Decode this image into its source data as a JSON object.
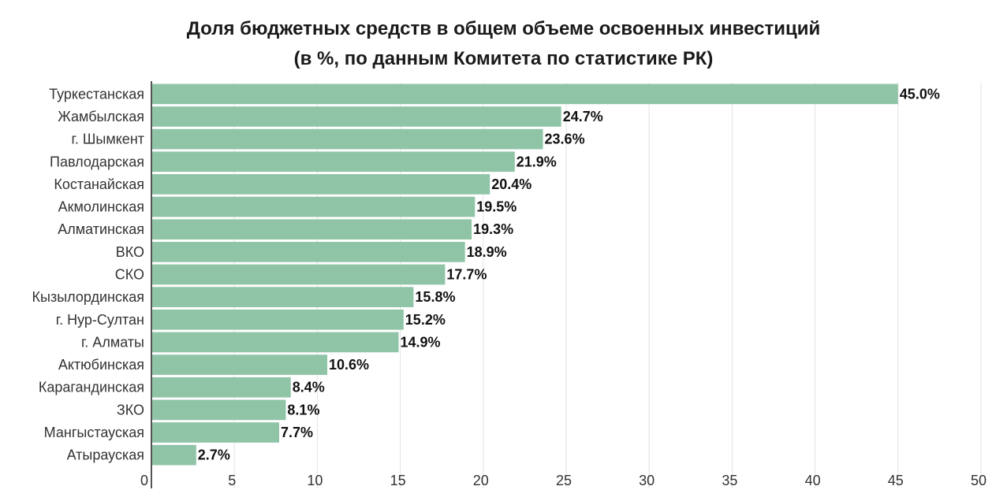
{
  "chart_data": {
    "type": "bar",
    "orientation": "horizontal",
    "title": "Доля бюджетных средств в общем объеме освоенных инвестиций",
    "subtitle": "(в %, по данным Комитета по статистике РК)",
    "categories": [
      "Туркестанская",
      "Жамбылская",
      "г. Шымкент",
      "Павлодарская",
      "Костанайская",
      "Акмолинская",
      "Алматинская",
      "ВКО",
      "СКО",
      "Кызылординская",
      "г. Нур-Султан",
      "г. Алматы",
      "Актюбинская",
      "Карагандинская",
      "ЗКО",
      "Мангыстауская",
      "Атырауская"
    ],
    "values": [
      45.0,
      24.7,
      23.6,
      21.9,
      20.4,
      19.5,
      19.3,
      18.9,
      17.7,
      15.8,
      15.2,
      14.9,
      10.6,
      8.4,
      8.1,
      7.7,
      2.7
    ],
    "value_labels": [
      "45.0%",
      "24.7%",
      "23.6%",
      "21.9%",
      "20.4%",
      "19.5%",
      "19.3%",
      "18.9%",
      "17.7%",
      "15.8%",
      "15.2%",
      "14.9%",
      "10.6%",
      "8.4%",
      "8.1%",
      "7.7%",
      "2.7%"
    ],
    "x_ticks": [
      0,
      5,
      10,
      15,
      20,
      25,
      30,
      35,
      40,
      45,
      50
    ],
    "xlim": [
      0,
      50
    ],
    "xlabel": "",
    "ylabel": "",
    "grid": "vertical",
    "bar_color": "#8fc4a7",
    "legend": "none"
  }
}
